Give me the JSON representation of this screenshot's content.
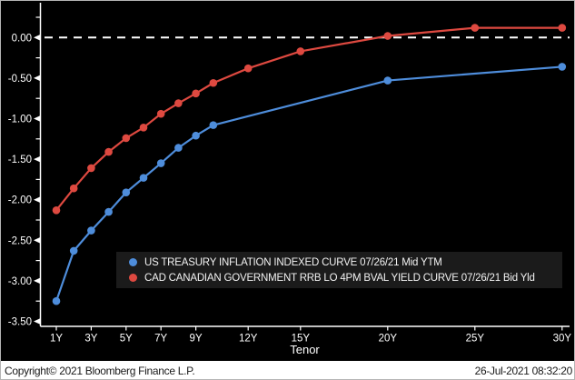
{
  "chart_data": {
    "type": "line",
    "title": "",
    "xlabel": "Tenor",
    "ylabel": "",
    "xlim": [
      0,
      30.6
    ],
    "ylim": [
      -3.56,
      0.43
    ],
    "grid": false,
    "background_color": "#000000",
    "zero_line": {
      "value": 0,
      "style": "dashed",
      "color": "#ffffff"
    },
    "x_axis": {
      "ticks": [
        {
          "label": "1Y",
          "value": 1
        },
        {
          "label": "3Y",
          "value": 3
        },
        {
          "label": "5Y",
          "value": 5
        },
        {
          "label": "7Y",
          "value": 7
        },
        {
          "label": "9Y",
          "value": 9
        },
        {
          "label": "12Y",
          "value": 12
        },
        {
          "label": "15Y",
          "value": 15
        },
        {
          "label": "20Y",
          "value": 20
        },
        {
          "label": "25Y",
          "value": 25
        },
        {
          "label": "30Y",
          "value": 30
        }
      ]
    },
    "y_axis": {
      "major_ticks": [
        {
          "label": "0.00",
          "value": 0
        },
        {
          "label": "-0.50",
          "value": -0.5
        },
        {
          "label": "-1.00",
          "value": -1
        },
        {
          "label": "-1.50",
          "value": -1.5
        },
        {
          "label": "-2.00",
          "value": -2
        },
        {
          "label": "-2.50",
          "value": -2.5
        },
        {
          "label": "-3.00",
          "value": -3
        },
        {
          "label": "-3.50",
          "value": -3.5
        }
      ],
      "minor_ticks": [
        0.25,
        -0.25,
        -0.75,
        -1.25,
        -1.75,
        -2.25,
        -2.75,
        -3.25
      ]
    },
    "series": [
      {
        "name": "US TREASURY INFLATION INDEXED CURVE 07/26/21 Mid YTM",
        "color": "#4E8DDB",
        "x": [
          1,
          2,
          3,
          4,
          5,
          6,
          7,
          8,
          9,
          10,
          20,
          30
        ],
        "y": [
          -3.25,
          -2.63,
          -2.38,
          -2.15,
          -1.91,
          -1.73,
          -1.55,
          -1.36,
          -1.21,
          -1.08,
          -0.53,
          -0.36
        ]
      },
      {
        "name": "CAD CANADIAN GOVERNMENT RRB LO 4PM BVAL YIELD CURVE 07/26/21 Bid Yld",
        "color": "#DE4940",
        "x": [
          1,
          2,
          3,
          4,
          5,
          6,
          7,
          8,
          9,
          10,
          12,
          15,
          20,
          25,
          30
        ],
        "y": [
          -2.13,
          -1.86,
          -1.61,
          -1.41,
          -1.24,
          -1.11,
          -0.94,
          -0.81,
          -0.69,
          -0.56,
          -0.38,
          -0.17,
          0.02,
          0.12,
          0.12
        ]
      }
    ],
    "legend_position": "inside-bottom"
  },
  "footer": {
    "copyright": "Copyright© 2021 Bloomberg Finance L.P.",
    "timestamp": "26-Jul-2021 08:32:20"
  }
}
